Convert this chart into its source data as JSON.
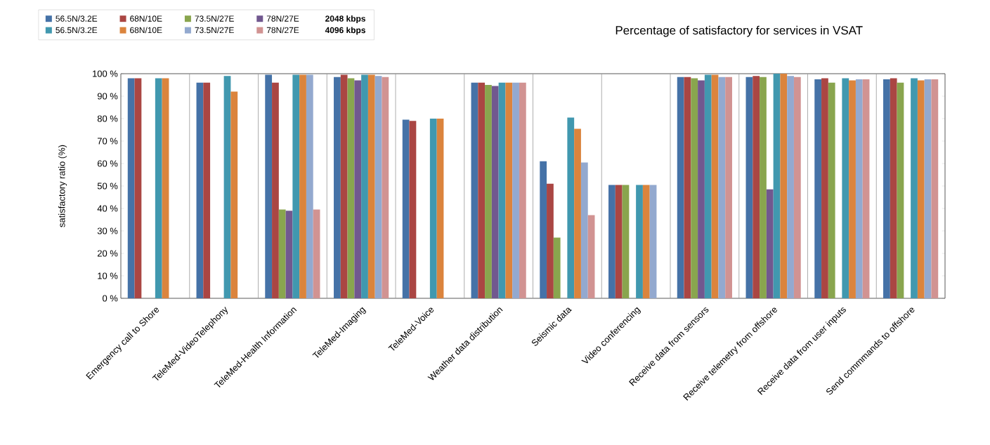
{
  "chart_data": {
    "type": "bar",
    "title": "Percentage of satisfactory for services in VSAT",
    "ylabel": "satisfactory ratio (%)",
    "categories": [
      "Emergency call to Shore",
      "TeleMed-VideoTelephony",
      "TeleMed-Health Information",
      "TeleMed-Imaging",
      "TeleMed-Voice",
      "Weather data distribution",
      "Seismic data",
      "Video conferencing",
      "Receive data from sensors",
      "Receive telemetry from offshore",
      "Receive data from user inputs",
      "Send commmands to offshore"
    ],
    "series": [
      {
        "name": "56.5N/3.2E",
        "color": "#4572a7",
        "values": [
          98,
          96,
          99.5,
          98.5,
          79.5,
          96,
          61,
          50.5,
          98.5,
          98.5,
          97.5,
          97.5
        ]
      },
      {
        "name": "68N/10E",
        "color": "#aa4643",
        "values": [
          98,
          96,
          96,
          99.5,
          79,
          96,
          51,
          50.5,
          98.5,
          99,
          98,
          98
        ]
      },
      {
        "name": "73.5N/27E",
        "color": "#89a54e",
        "values": [
          null,
          null,
          39.5,
          98,
          null,
          95,
          27,
          50.5,
          98,
          98.5,
          96,
          96
        ]
      },
      {
        "name": "78N/27E",
        "color": "#71588f",
        "values": [
          null,
          null,
          39,
          97,
          null,
          94.5,
          null,
          null,
          97,
          48.5,
          null,
          null
        ]
      },
      {
        "name": "56.5N/3.2E",
        "color": "#4198af",
        "values": [
          98,
          99,
          99.5,
          99.5,
          80,
          96,
          80.5,
          50.5,
          99.5,
          100,
          98,
          98
        ]
      },
      {
        "name": "68N/10E",
        "color": "#db843d",
        "values": [
          98,
          92,
          99.5,
          99.5,
          80,
          96,
          75.5,
          50.5,
          99.5,
          100,
          97,
          97
        ]
      },
      {
        "name": "73.5N/27E",
        "color": "#93a9cf",
        "values": [
          null,
          null,
          99.5,
          99,
          null,
          96,
          60.5,
          50.5,
          98.5,
          99,
          97.5,
          97.5
        ]
      },
      {
        "name": "78N/27E",
        "color": "#d19392",
        "values": [
          null,
          null,
          39.5,
          98.5,
          null,
          96,
          37,
          null,
          98.5,
          98.5,
          97.5,
          97.5
        ]
      }
    ],
    "annotations": [
      "**2048 kbps**",
      "**4096 kbps**"
    ],
    "ylim": [
      0,
      100
    ],
    "yticks": [
      {
        "value": 0,
        "label": "0 %"
      },
      {
        "value": 10,
        "label": "10 %"
      },
      {
        "value": 20,
        "label": "20 %"
      },
      {
        "value": 30,
        "label": "30 %"
      },
      {
        "value": 40,
        "label": "40 %"
      },
      {
        "value": 50,
        "label": "50 %"
      },
      {
        "value": 60,
        "label": "60 %"
      },
      {
        "value": 70,
        "label": "70 %"
      },
      {
        "value": 80,
        "label": "80 %"
      },
      {
        "value": 90,
        "label": "90 %"
      },
      {
        "value": 100,
        "label": "100 %"
      }
    ],
    "grid": "x",
    "legend": "top left"
  }
}
